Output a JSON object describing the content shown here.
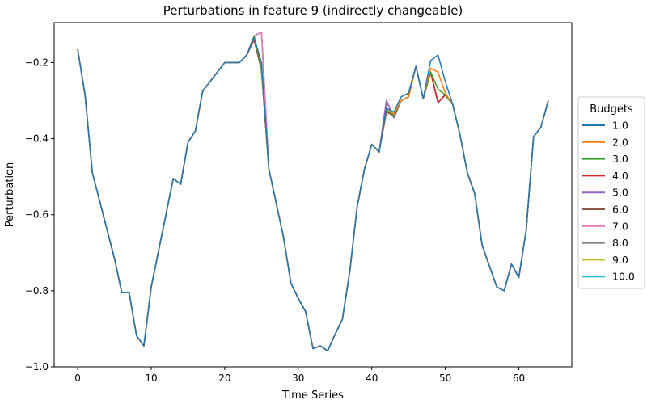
{
  "chart_data": {
    "type": "line",
    "title": "Perturbations in feature 9 (indirectly changeable)",
    "xlabel": "Time Series",
    "ylabel": "Perturbation",
    "xlim": [
      -3.2,
      67.2
    ],
    "ylim": [
      -1.0,
      -0.095
    ],
    "xticks": [
      0,
      10,
      20,
      30,
      40,
      50,
      60
    ],
    "yticks": [
      -1.0,
      -0.8,
      -0.6,
      -0.4,
      -0.2
    ],
    "ytick_labels": [
      "−1.0",
      "−0.8",
      "−0.6",
      "−0.4",
      "−0.2"
    ],
    "legend": {
      "title": "Budgets",
      "position": "center-right-outside"
    },
    "base_series": [
      -0.165,
      -0.285,
      -0.49,
      -0.565,
      -0.64,
      -0.715,
      -0.805,
      -0.805,
      -0.918,
      -0.945,
      -0.79,
      -0.695,
      -0.6,
      -0.505,
      -0.52,
      -0.41,
      -0.38,
      -0.275,
      -0.25,
      -0.225,
      -0.2,
      -0.2,
      -0.2,
      -0.18,
      -0.13,
      -0.12,
      -0.48,
      -0.57,
      -0.66,
      -0.78,
      -0.82,
      -0.855,
      -0.952,
      -0.945,
      -0.958,
      -0.915,
      -0.875,
      -0.75,
      -0.58,
      -0.48,
      -0.415,
      -0.435,
      -0.3,
      -0.345,
      -0.3,
      -0.29,
      -0.21,
      -0.295,
      -0.225,
      -0.305,
      -0.285,
      -0.31,
      -0.39,
      -0.49,
      -0.545,
      -0.68,
      -0.735,
      -0.79,
      -0.8,
      -0.73,
      -0.765,
      -0.64,
      -0.395,
      -0.37,
      -0.3
    ],
    "series": [
      {
        "name": "1.0",
        "color": "#1f77b4",
        "overrides": {
          "24": -0.135,
          "25": -0.2,
          "42": -0.32,
          "43": -0.33,
          "44": -0.29,
          "45": -0.28,
          "48": -0.195,
          "49": -0.18,
          "50": -0.25
        }
      },
      {
        "name": "2.0",
        "color": "#ff7f0e",
        "overrides": {
          "24": -0.135,
          "25": -0.205,
          "42": -0.32,
          "43": -0.335,
          "48": -0.215,
          "49": -0.225,
          "50": -0.28
        }
      },
      {
        "name": "3.0",
        "color": "#2ca02c",
        "overrides": {
          "24": -0.13,
          "25": -0.22,
          "42": -0.325,
          "43": -0.34,
          "48": -0.225,
          "49": -0.27,
          "50": -0.285
        }
      },
      {
        "name": "4.0",
        "color": "#d62728",
        "overrides": {
          "24": -0.14,
          "25": -0.22,
          "42": -0.33,
          "43": -0.34
        }
      },
      {
        "name": "5.0",
        "color": "#9467bd",
        "overrides": {
          "24": -0.14,
          "25": -0.22
        }
      },
      {
        "name": "6.0",
        "color": "#8c564b",
        "overrides": {
          "24": -0.14,
          "25": -0.22
        }
      },
      {
        "name": "7.0",
        "color": "#e377c2",
        "overrides": {}
      },
      {
        "name": "8.0",
        "color": "#7f7f7f",
        "overrides": {}
      },
      {
        "name": "9.0",
        "color": "#bcbd22",
        "overrides": {}
      },
      {
        "name": "10.0",
        "color": "#17becf",
        "overrides": {}
      }
    ]
  }
}
